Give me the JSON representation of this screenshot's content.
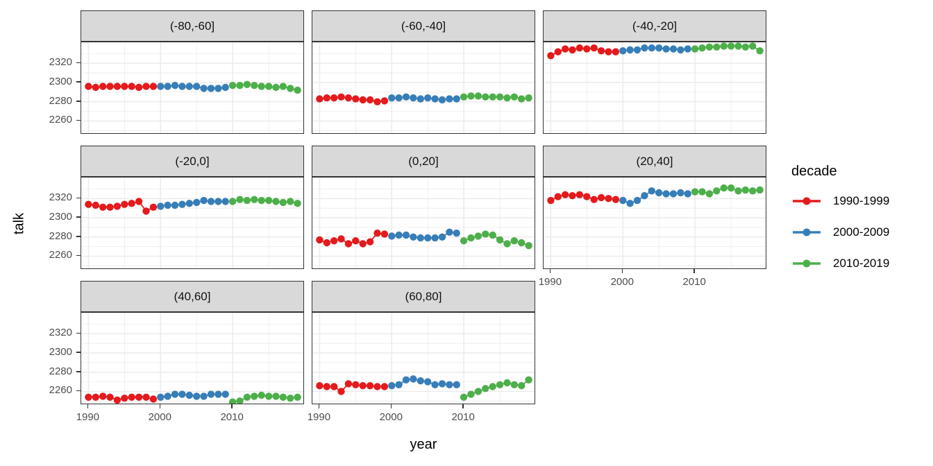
{
  "chart_data": {
    "type": "scatter",
    "title": "",
    "xlabel": "year",
    "ylabel": "talk",
    "x": [
      1990,
      1991,
      1992,
      1993,
      1994,
      1995,
      1996,
      1997,
      1998,
      1999,
      2000,
      2001,
      2002,
      2003,
      2004,
      2005,
      2006,
      2007,
      2008,
      2009,
      2010,
      2011,
      2012,
      2013,
      2014,
      2015,
      2016,
      2017,
      2018,
      2019
    ],
    "x_domain": [
      1989,
      2020
    ],
    "y_domain": [
      2245.9,
      2341.9
    ],
    "x_major_ticks": [
      1990,
      2000,
      2010
    ],
    "x_minor_ticks": [
      1995,
      2005,
      2015
    ],
    "y_major_ticks": [
      2260,
      2280,
      2300,
      2320
    ],
    "y_minor_ticks": [
      2250,
      2270,
      2290,
      2310,
      2330
    ],
    "x_tick_labels": [
      "1990",
      "2000",
      "2010"
    ],
    "y_tick_labels": [
      "2260",
      "2280",
      "2300",
      "2320"
    ],
    "grid": true,
    "legend_position": "right",
    "decades": [
      {
        "name": "1990-1999",
        "color": "#E41A1C",
        "start_year": 1990
      },
      {
        "name": "2000-2009",
        "color": "#377EB8",
        "start_year": 2000
      },
      {
        "name": "2010-2019",
        "color": "#4DAF4A",
        "start_year": 2010
      }
    ],
    "facets": [
      {
        "label": "(-80,-60]",
        "row": 0,
        "col": 0,
        "axis_y": true,
        "axis_x": false,
        "series": [
          {
            "name": "1990-1999",
            "values": [
              2296,
              2295,
              2296,
              2296,
              2296,
              2296,
              2296,
              2295,
              2296,
              2296
            ]
          },
          {
            "name": "2000-2009",
            "values": [
              2296,
              2296,
              2297,
              2296,
              2296,
              2296,
              2294,
              2294,
              2294,
              2295
            ]
          },
          {
            "name": "2010-2019",
            "values": [
              2297,
              2297,
              2298,
              2297,
              2296,
              2296,
              2295,
              2296,
              2294,
              2292
            ]
          }
        ]
      },
      {
        "label": "(-60,-40]",
        "row": 0,
        "col": 1,
        "axis_y": false,
        "axis_x": false,
        "series": [
          {
            "name": "1990-1999",
            "values": [
              2283,
              2284,
              2284,
              2285,
              2284,
              2283,
              2282,
              2282,
              2280,
              2281
            ]
          },
          {
            "name": "2000-2009",
            "values": [
              2284,
              2284,
              2285,
              2284,
              2283,
              2284,
              2283,
              2282,
              2283,
              2283
            ]
          },
          {
            "name": "2010-2019",
            "values": [
              2285,
              2286,
              2286,
              2285,
              2285,
              2285,
              2284,
              2285,
              2283,
              2284
            ]
          }
        ]
      },
      {
        "label": "(-40,-20]",
        "row": 0,
        "col": 2,
        "axis_y": false,
        "axis_x": false,
        "series": [
          {
            "name": "1990-1999",
            "values": [
              2328,
              2332,
              2335,
              2334,
              2336,
              2335,
              2336,
              2333,
              2332,
              2332
            ]
          },
          {
            "name": "2000-2009",
            "values": [
              2333,
              2334,
              2334,
              2336,
              2336,
              2336,
              2335,
              2335,
              2334,
              2335
            ]
          },
          {
            "name": "2010-2019",
            "values": [
              2335,
              2336,
              2337,
              2337,
              2338,
              2338,
              2338,
              2337,
              2338,
              2333
            ]
          }
        ]
      },
      {
        "label": "(-20,0]",
        "row": 1,
        "col": 0,
        "axis_y": true,
        "axis_x": false,
        "series": [
          {
            "name": "1990-1999",
            "values": [
              2314,
              2313,
              2311,
              2311,
              2312,
              2314,
              2315,
              2317,
              2307,
              2311
            ]
          },
          {
            "name": "2000-2009",
            "values": [
              2312,
              2313,
              2313,
              2314,
              2315,
              2316,
              2318,
              2317,
              2317,
              2317
            ]
          },
          {
            "name": "2010-2019",
            "values": [
              2317,
              2319,
              2318,
              2319,
              2318,
              2318,
              2317,
              2316,
              2317,
              2315
            ]
          }
        ]
      },
      {
        "label": "(0,20]",
        "row": 1,
        "col": 1,
        "axis_y": false,
        "axis_x": false,
        "series": [
          {
            "name": "1990-1999",
            "values": [
              2277,
              2274,
              2276,
              2278,
              2273,
              2276,
              2273,
              2275,
              2284,
              2283
            ]
          },
          {
            "name": "2000-2009",
            "values": [
              2281,
              2282,
              2282,
              2280,
              2279,
              2279,
              2279,
              2280,
              2285,
              2284
            ]
          },
          {
            "name": "2010-2019",
            "values": [
              2276,
              2279,
              2281,
              2283,
              2282,
              2277,
              2273,
              2276,
              2274,
              2271
            ]
          }
        ]
      },
      {
        "label": "(20,40]",
        "row": 1,
        "col": 2,
        "axis_y": false,
        "axis_x": true,
        "series": [
          {
            "name": "1990-1999",
            "values": [
              2318,
              2322,
              2324,
              2323,
              2324,
              2322,
              2319,
              2321,
              2320,
              2319
            ]
          },
          {
            "name": "2000-2009",
            "values": [
              2318,
              2315,
              2318,
              2323,
              2328,
              2326,
              2325,
              2325,
              2326,
              2325
            ]
          },
          {
            "name": "2010-2019",
            "values": [
              2327,
              2327,
              2325,
              2328,
              2331,
              2331,
              2328,
              2329,
              2328,
              2329
            ]
          }
        ]
      },
      {
        "label": "(40,60]",
        "row": 2,
        "col": 0,
        "axis_y": true,
        "axis_x": true,
        "series": [
          {
            "name": "1990-1999",
            "values": [
              2254,
              2254,
              2255,
              2254,
              2251,
              2253,
              2254,
              2254,
              2254,
              2252
            ]
          },
          {
            "name": "2000-2009",
            "values": [
              2254,
              2255,
              2257,
              2257,
              2256,
              2255,
              2255,
              2257,
              2257,
              2257
            ]
          },
          {
            "name": "2010-2019",
            "values": [
              2249,
              2250,
              2254,
              2255,
              2256,
              2255,
              2255,
              2254,
              2253,
              2254
            ]
          }
        ]
      },
      {
        "label": "(60,80]",
        "row": 2,
        "col": 1,
        "axis_y": false,
        "axis_x": true,
        "series": [
          {
            "name": "1990-1999",
            "values": [
              2266,
              2265,
              2265,
              2260,
              2268,
              2267,
              2266,
              2266,
              2265,
              2265
            ]
          },
          {
            "name": "2000-2009",
            "values": [
              2266,
              2267,
              2272,
              2273,
              2271,
              2270,
              2267,
              2268,
              2267,
              2267
            ]
          },
          {
            "name": "2010-2019",
            "values": [
              2254,
              2257,
              2260,
              2263,
              2265,
              2267,
              2269,
              2267,
              2266,
              2272
            ]
          }
        ]
      }
    ],
    "legend": {
      "title": "decade",
      "entries": [
        {
          "label": "1990-1999",
          "color": "#E41A1C"
        },
        {
          "label": "2000-2009",
          "color": "#377EB8"
        },
        {
          "label": "2010-2019",
          "color": "#4DAF4A"
        }
      ]
    },
    "colors": {
      "grid": "#EBEBEB",
      "panel_border": "#333333",
      "strip_background": "#D9D9D9",
      "tick_text": "#4D4D4D"
    }
  }
}
